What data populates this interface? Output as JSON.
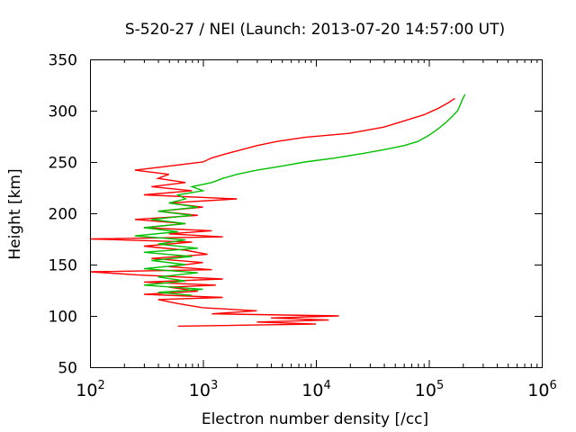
{
  "chart_data": {
    "type": "line",
    "title": "S-520-27 / NEI (Launch: 2013-07-20 14:57:00 UT)",
    "xlabel": "Electron number density [/cc]",
    "ylabel": "Height [km]",
    "x_scale": "log",
    "xlim": [
      100,
      1000000
    ],
    "ylim": [
      50,
      350
    ],
    "x_ticks": [
      {
        "value": 100,
        "base": "10",
        "exp": "2"
      },
      {
        "value": 1000,
        "base": "10",
        "exp": "3"
      },
      {
        "value": 10000,
        "base": "10",
        "exp": "4"
      },
      {
        "value": 100000,
        "base": "10",
        "exp": "5"
      },
      {
        "value": 1000000,
        "base": "10",
        "exp": "6"
      }
    ],
    "y_ticks": [
      "50",
      "100",
      "150",
      "200",
      "250",
      "300",
      "350"
    ],
    "grid": false,
    "legend": "none",
    "series": [
      {
        "color": "#ff0000",
        "points": [
          [
            600,
            90
          ],
          [
            10000,
            92
          ],
          [
            3000,
            94
          ],
          [
            13000,
            96
          ],
          [
            4000,
            98
          ],
          [
            16000,
            100
          ],
          [
            1200,
            102
          ],
          [
            3000,
            105
          ],
          [
            1000,
            108
          ],
          [
            600,
            112
          ],
          [
            400,
            116
          ],
          [
            1500,
            118
          ],
          [
            300,
            121
          ],
          [
            900,
            124
          ],
          [
            500,
            128
          ],
          [
            1300,
            130
          ],
          [
            300,
            133
          ],
          [
            1500,
            136
          ],
          [
            260,
            140
          ],
          [
            100,
            143
          ],
          [
            1200,
            145
          ],
          [
            500,
            148
          ],
          [
            1000,
            152
          ],
          [
            350,
            156
          ],
          [
            1100,
            160
          ],
          [
            700,
            164
          ],
          [
            300,
            168
          ],
          [
            800,
            172
          ],
          [
            100,
            175
          ],
          [
            1500,
            177
          ],
          [
            500,
            180
          ],
          [
            1200,
            183
          ],
          [
            300,
            186
          ],
          [
            700,
            190
          ],
          [
            250,
            194
          ],
          [
            900,
            198
          ],
          [
            400,
            202
          ],
          [
            1000,
            206
          ],
          [
            500,
            210
          ],
          [
            2000,
            214
          ],
          [
            300,
            218
          ],
          [
            800,
            222
          ],
          [
            350,
            226
          ],
          [
            700,
            230
          ],
          [
            400,
            234
          ],
          [
            500,
            238
          ],
          [
            250,
            242
          ],
          [
            500,
            246
          ],
          [
            1000,
            250
          ],
          [
            1200,
            254
          ],
          [
            1600,
            258
          ],
          [
            2200,
            262
          ],
          [
            3000,
            266
          ],
          [
            4500,
            270
          ],
          [
            8000,
            274
          ],
          [
            20000,
            278
          ],
          [
            40000,
            284
          ],
          [
            60000,
            290
          ],
          [
            90000,
            296
          ],
          [
            120000,
            302
          ],
          [
            150000,
            308
          ],
          [
            170000,
            312
          ]
        ]
      },
      {
        "color": "#00c000",
        "points": [
          [
            800,
            120
          ],
          [
            400,
            123
          ],
          [
            1000,
            126
          ],
          [
            300,
            130
          ],
          [
            700,
            134
          ],
          [
            400,
            138
          ],
          [
            900,
            142
          ],
          [
            300,
            146
          ],
          [
            700,
            150
          ],
          [
            350,
            154
          ],
          [
            800,
            158
          ],
          [
            300,
            162
          ],
          [
            900,
            166
          ],
          [
            400,
            170
          ],
          [
            700,
            174
          ],
          [
            250,
            178
          ],
          [
            600,
            182
          ],
          [
            300,
            186
          ],
          [
            700,
            190
          ],
          [
            350,
            194
          ],
          [
            800,
            198
          ],
          [
            400,
            202
          ],
          [
            900,
            206
          ],
          [
            500,
            210
          ],
          [
            700,
            214
          ],
          [
            600,
            218
          ],
          [
            1000,
            222
          ],
          [
            800,
            226
          ],
          [
            1200,
            230
          ],
          [
            1500,
            234
          ],
          [
            2000,
            238
          ],
          [
            3000,
            242
          ],
          [
            5000,
            246
          ],
          [
            8000,
            250
          ],
          [
            15000,
            254
          ],
          [
            25000,
            258
          ],
          [
            40000,
            262
          ],
          [
            60000,
            266
          ],
          [
            80000,
            270
          ],
          [
            100000,
            276
          ],
          [
            120000,
            282
          ],
          [
            140000,
            288
          ],
          [
            160000,
            294
          ],
          [
            180000,
            300
          ],
          [
            190000,
            306
          ],
          [
            200000,
            312
          ],
          [
            210000,
            316
          ]
        ]
      }
    ]
  }
}
